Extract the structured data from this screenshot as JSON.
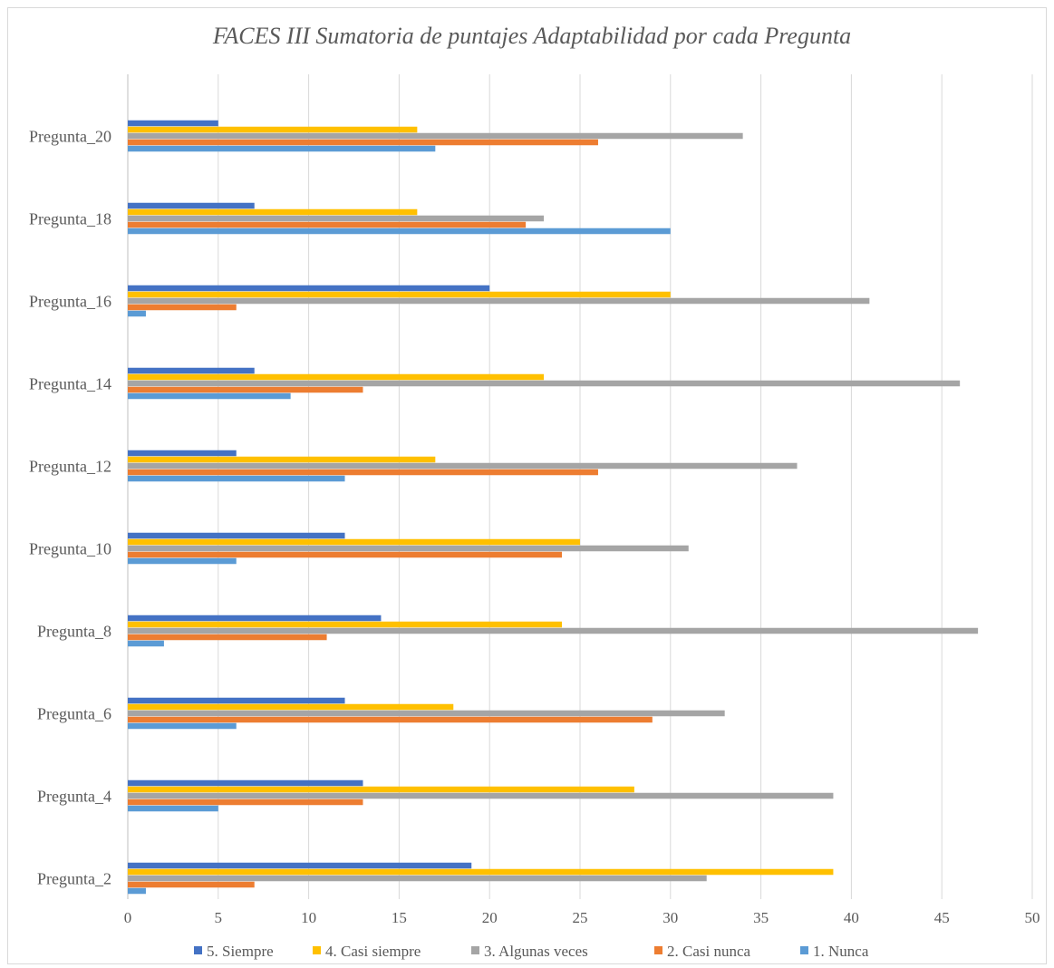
{
  "chart_data": {
    "type": "bar",
    "orientation": "horizontal",
    "title": "FACES III Sumatoria de puntajes Adaptabilidad por cada Pregunta",
    "xlabel": "",
    "ylabel": "",
    "xlim": [
      0,
      50
    ],
    "x_ticks": [
      0,
      5,
      10,
      15,
      20,
      25,
      30,
      35,
      40,
      45,
      50
    ],
    "grid": true,
    "legend_position": "bottom",
    "categories": [
      "Pregunta_2",
      "",
      "Pregunta_4",
      "",
      "Pregunta_6",
      "",
      "Pregunta_8",
      "",
      "Pregunta_10",
      "",
      "Pregunta_12",
      "",
      "Pregunta_14",
      "",
      "Pregunta_16",
      "",
      "Pregunta_18",
      "",
      "Pregunta_20",
      ""
    ],
    "series": [
      {
        "name": "1. Nunca",
        "color": "#5b9bd5",
        "values": [
          1,
          0,
          5,
          0,
          6,
          0,
          2,
          0,
          6,
          0,
          12,
          0,
          9,
          0,
          1,
          0,
          30,
          0,
          17,
          0
        ]
      },
      {
        "name": "2. Casi nunca",
        "color": "#ed7d31",
        "values": [
          7,
          0,
          13,
          0,
          29,
          0,
          11,
          0,
          24,
          0,
          26,
          0,
          13,
          0,
          6,
          0,
          22,
          0,
          26,
          0
        ]
      },
      {
        "name": "3. Algunas veces",
        "color": "#a5a5a5",
        "values": [
          32,
          0,
          39,
          0,
          33,
          0,
          47,
          0,
          31,
          0,
          37,
          0,
          46,
          0,
          41,
          0,
          23,
          0,
          34,
          0
        ]
      },
      {
        "name": "4. Casi siempre",
        "color": "#ffc000",
        "values": [
          39,
          0,
          28,
          0,
          18,
          0,
          24,
          0,
          25,
          0,
          17,
          0,
          23,
          0,
          30,
          0,
          16,
          0,
          16,
          0
        ]
      },
      {
        "name": "5. Siempre",
        "color": "#4472c4",
        "values": [
          19,
          0,
          13,
          0,
          12,
          0,
          14,
          0,
          12,
          0,
          6,
          0,
          7,
          0,
          20,
          0,
          7,
          0,
          5,
          0
        ]
      }
    ]
  }
}
